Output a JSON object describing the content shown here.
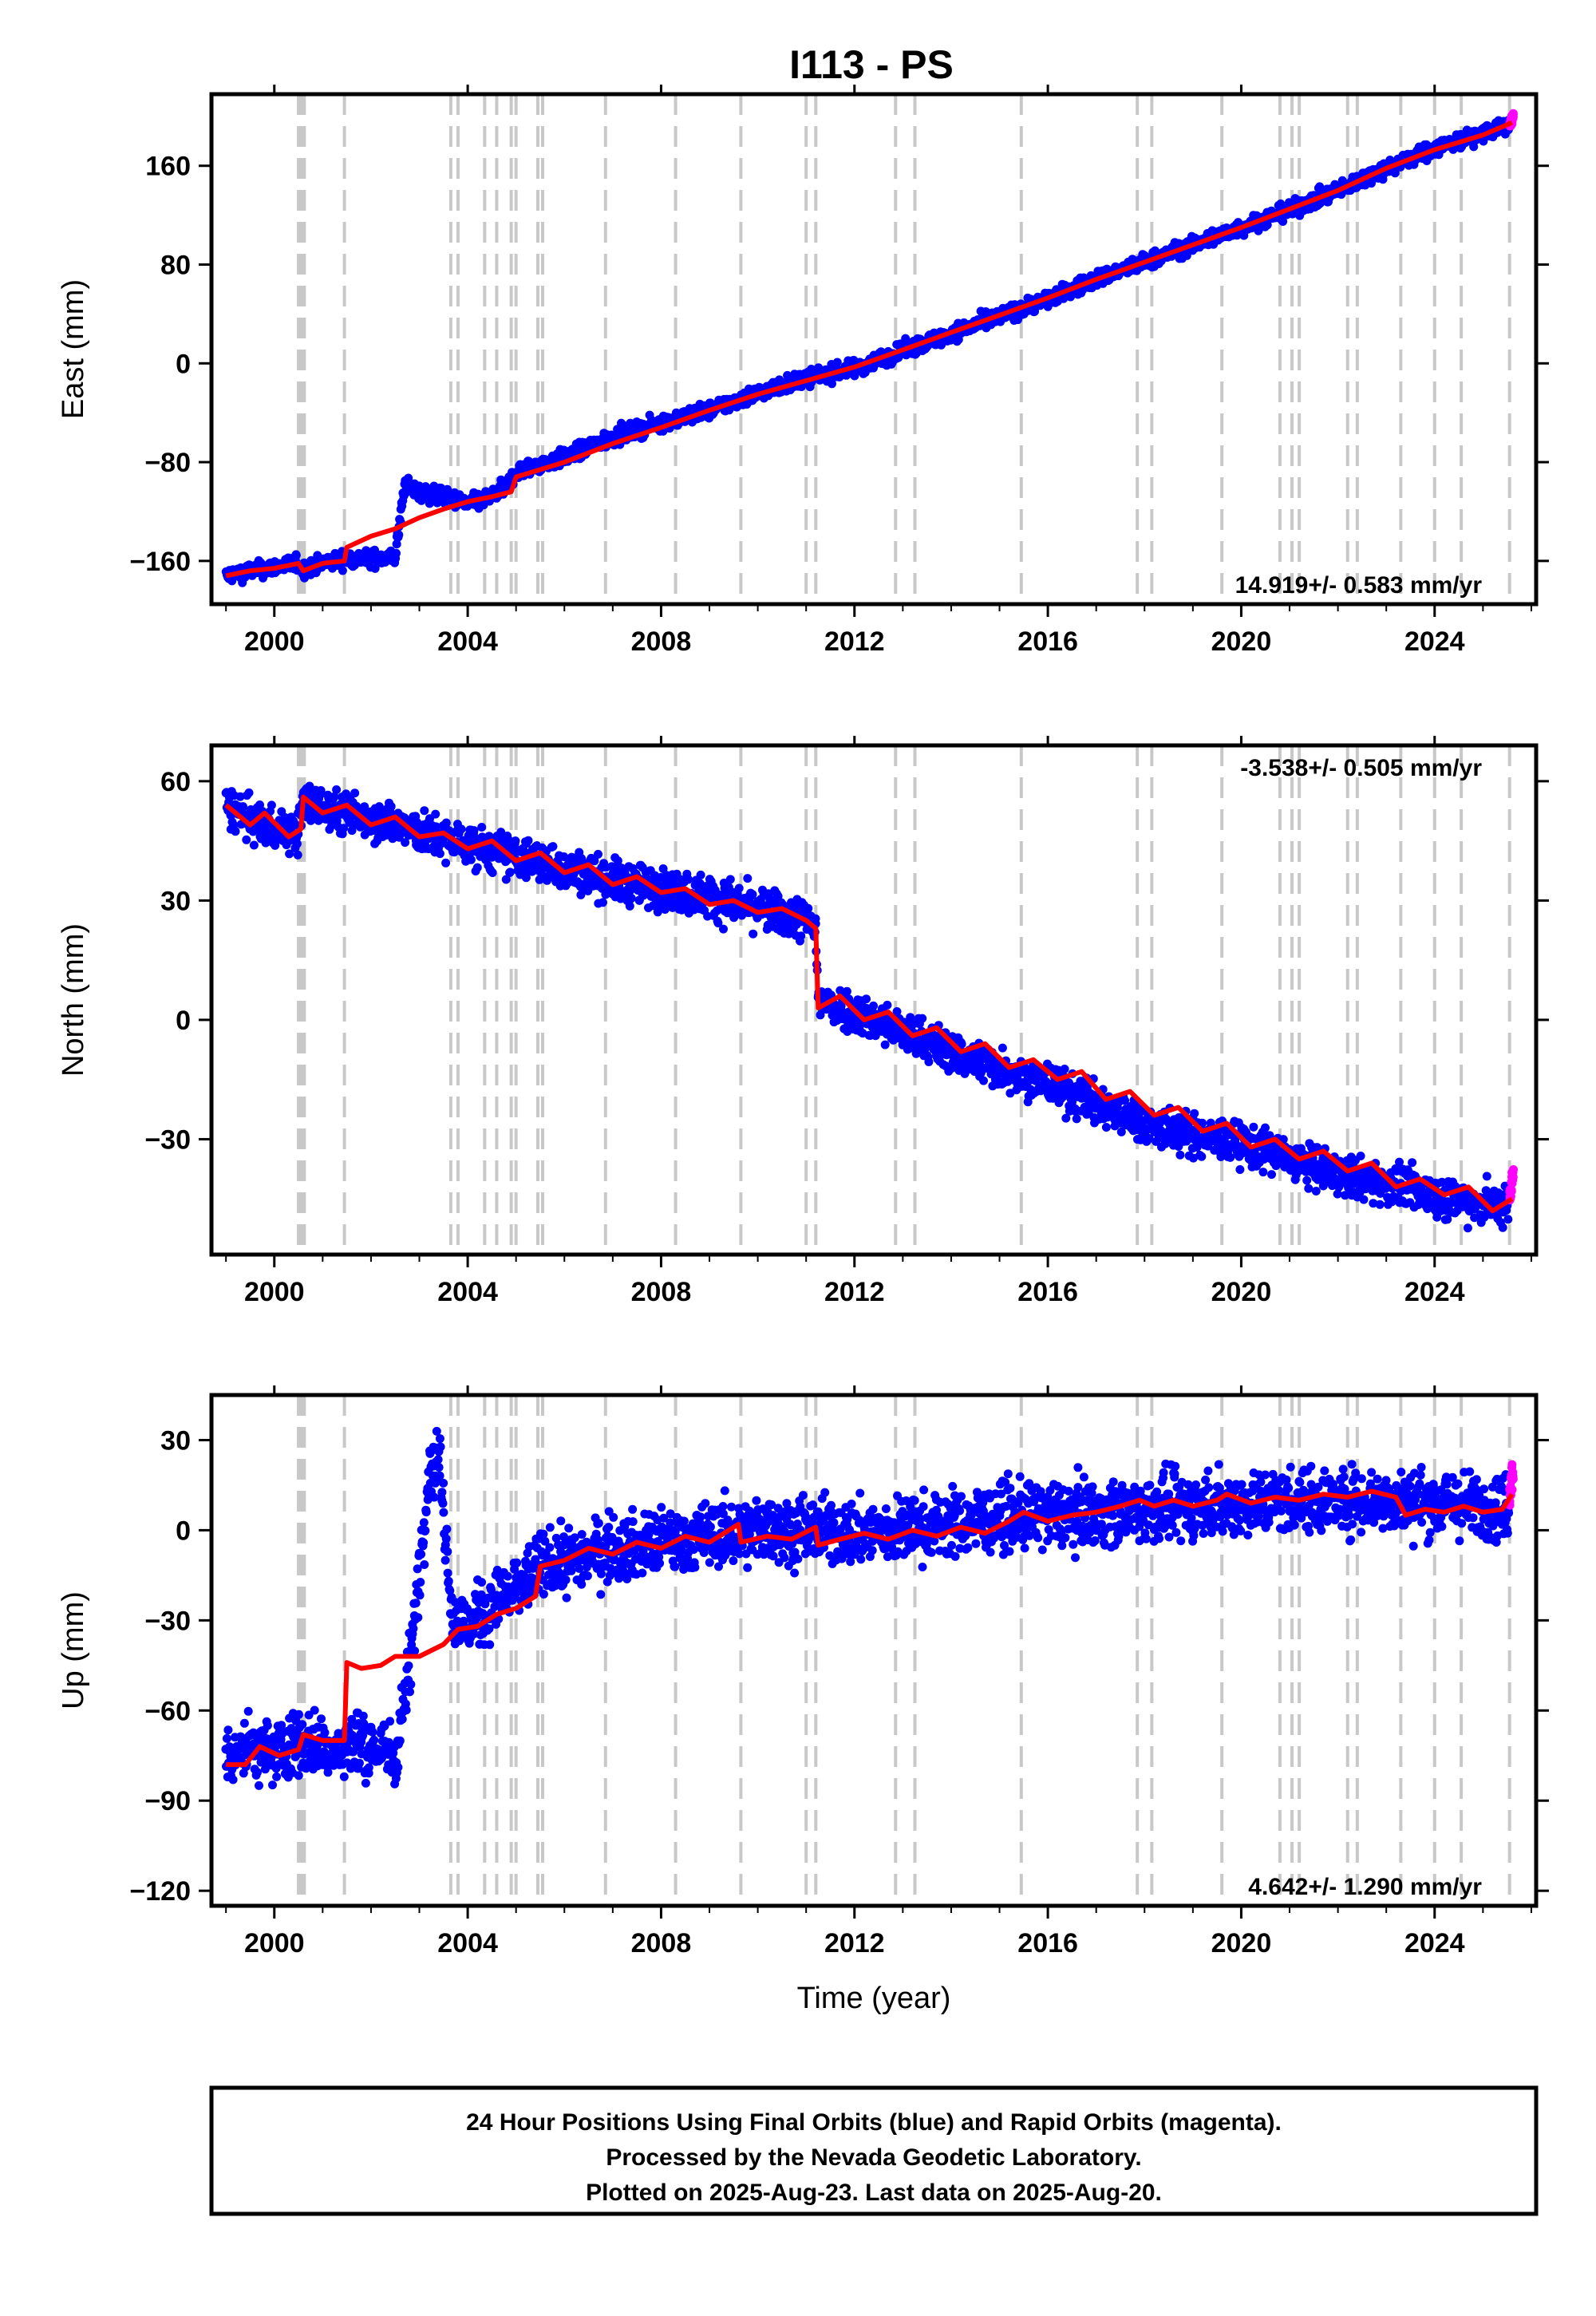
{
  "title": "I113 - PS",
  "footer": {
    "lines": [
      "24 Hour Positions Using Final Orbits (blue) and Rapid Orbits (magenta).",
      "Processed by the Nevada Geodetic Laboratory.",
      "Plotted on 2025-Aug-23. Last data on 2025-Aug-20."
    ]
  },
  "colors": {
    "final": "#0000ff",
    "rapid": "#ff00ff",
    "model": "#ff0000",
    "event": "#c8c8c8",
    "frame": "#000000"
  },
  "event_lines": [
    2000.5,
    2000.56,
    2000.62,
    2001.45,
    2003.65,
    2003.8,
    2004.35,
    2004.6,
    2004.9,
    2005.0,
    2005.45,
    2005.55,
    2006.85,
    2008.3,
    2009.65,
    2011.0,
    2011.2,
    2012.85,
    2013.25,
    2015.45,
    2017.85,
    2018.15,
    2019.6,
    2020.8,
    2021.05,
    2021.2,
    2022.2,
    2022.4,
    2023.3,
    2024.0,
    2024.55,
    2025.55
  ],
  "chart_data": [
    {
      "type": "scatter",
      "title": "I113 - PS",
      "xlabel": "",
      "ylabel": "East (mm)",
      "xlim": [
        1998.7,
        2026.1
      ],
      "ylim": [
        -195,
        218
      ],
      "xticks": [
        2000,
        2004,
        2008,
        2012,
        2016,
        2020,
        2024
      ],
      "xtick_labels": [
        "2000",
        "2004",
        "2008",
        "2012",
        "2016",
        "2020",
        "2024"
      ],
      "yticks": [
        -160,
        -80,
        0,
        80,
        160
      ],
      "ytick_labels": [
        "−160",
        "−80",
        "0",
        "80",
        "160"
      ],
      "rate_text": "14.919+/- 0.583 mm/yr",
      "rate_pos": "bottom-right",
      "final_orbits": {
        "name": "Final Orbits",
        "x": [
          1999.0,
          1999.5,
          2000.0,
          2000.5,
          2000.6,
          2001.0,
          2001.5,
          2002.0,
          2002.5,
          2002.7,
          2003.0,
          2003.5,
          2004.0,
          2004.5,
          2004.8,
          2005.0,
          2006.0,
          2007.0,
          2008.0,
          2009.0,
          2010.0,
          2011.0,
          2012.0,
          2013.0,
          2014.0,
          2015.0,
          2016.0,
          2017.0,
          2018.0,
          2019.0,
          2020.0,
          2021.0,
          2022.0,
          2023.0,
          2024.0,
          2025.0,
          2025.55
        ],
        "y": [
          -172,
          -168,
          -165,
          -162,
          -167,
          -162,
          -158,
          -158,
          -157,
          -98,
          -105,
          -108,
          -114,
          -108,
          -100,
          -88,
          -76,
          -60,
          -48,
          -38,
          -24,
          -12,
          -4,
          10,
          24,
          38,
          52,
          68,
          82,
          96,
          110,
          124,
          140,
          158,
          174,
          186,
          193
        ]
      },
      "rapid_orbits": {
        "name": "Rapid Orbits",
        "x": [
          2025.55,
          2025.6,
          2025.63
        ],
        "y": [
          192,
          197,
          202
        ]
      },
      "model": {
        "x": [
          1999.0,
          1999.5,
          2000.0,
          2000.5,
          2000.6,
          2001.0,
          2001.45,
          2001.5,
          2002.0,
          2002.5,
          2003.0,
          2003.5,
          2004.0,
          2004.5,
          2004.9,
          2005.0,
          2005.5,
          2006.0,
          2007.0,
          2008.0,
          2009.0,
          2010.0,
          2011.0,
          2012.0,
          2013.0,
          2014.0,
          2015.0,
          2016.0,
          2017.0,
          2018.0,
          2019.0,
          2020.0,
          2021.0,
          2022.0,
          2023.0,
          2024.0,
          2025.0,
          2025.6
        ],
        "y": [
          -172,
          -168,
          -166,
          -162,
          -168,
          -162,
          -160,
          -149,
          -140,
          -134,
          -125,
          -118,
          -112,
          -108,
          -104,
          -92,
          -86,
          -80,
          -65,
          -52,
          -38,
          -25,
          -14,
          -3,
          11,
          25,
          39,
          53,
          68,
          82,
          96,
          110,
          125,
          140,
          158,
          173,
          185,
          195
        ]
      }
    },
    {
      "type": "scatter",
      "title": "",
      "xlabel": "",
      "ylabel": "North (mm)",
      "xlim": [
        1998.7,
        2026.1
      ],
      "ylim": [
        -59,
        69
      ],
      "xticks": [
        2000,
        2004,
        2008,
        2012,
        2016,
        2020,
        2024
      ],
      "xtick_labels": [
        "2000",
        "2004",
        "2008",
        "2012",
        "2016",
        "2020",
        "2024"
      ],
      "yticks": [
        -30,
        0,
        30,
        60
      ],
      "ytick_labels": [
        "−30",
        "0",
        "30",
        "60"
      ],
      "rate_text": "-3.538+/- 0.505 mm/yr",
      "rate_pos": "top-right",
      "final_orbits": {
        "name": "Final Orbits",
        "x": [
          1999.0,
          1999.5,
          2000.0,
          2000.5,
          2000.6,
          2001.0,
          2002.0,
          2003.0,
          2004.0,
          2005.0,
          2006.0,
          2007.0,
          2008.0,
          2009.0,
          2010.0,
          2011.0,
          2011.2,
          2011.25,
          2012.0,
          2013.0,
          2014.0,
          2015.0,
          2016.0,
          2017.0,
          2018.0,
          2019.0,
          2020.0,
          2021.0,
          2022.0,
          2023.0,
          2024.0,
          2025.0,
          2025.55
        ],
        "y": [
          54,
          50,
          48,
          47,
          55,
          53,
          51,
          47,
          44,
          41,
          38,
          35,
          33,
          31,
          28,
          25,
          23,
          5,
          2,
          -3,
          -8,
          -12,
          -16,
          -21,
          -26,
          -29,
          -31,
          -35,
          -39,
          -41,
          -44,
          -46,
          -47
        ]
      },
      "rapid_orbits": {
        "name": "Rapid Orbits",
        "x": [
          2025.55,
          2025.6,
          2025.63
        ],
        "y": [
          -45,
          -41,
          -38
        ]
      },
      "model": {
        "x": [
          1999.0,
          1999.5,
          1999.8,
          2000.3,
          2000.55,
          2000.6,
          2001.0,
          2001.5,
          2002.0,
          2002.5,
          2003.0,
          2003.5,
          2004.0,
          2004.5,
          2005.0,
          2005.5,
          2006.0,
          2006.5,
          2007.0,
          2007.5,
          2008.0,
          2008.5,
          2009.0,
          2009.5,
          2010.0,
          2010.5,
          2011.0,
          2011.2,
          2011.25,
          2011.7,
          2012.2,
          2012.7,
          2013.2,
          2013.7,
          2014.2,
          2014.7,
          2015.2,
          2015.7,
          2016.2,
          2016.7,
          2017.2,
          2017.7,
          2018.2,
          2018.7,
          2019.2,
          2019.7,
          2020.2,
          2020.7,
          2021.2,
          2021.7,
          2022.2,
          2022.7,
          2023.2,
          2023.7,
          2024.2,
          2024.7,
          2025.2,
          2025.6
        ],
        "y": [
          54,
          49,
          52,
          46,
          48,
          56,
          52,
          54,
          49,
          51,
          46,
          47,
          43,
          45,
          40,
          42,
          37,
          39,
          34,
          36,
          32,
          33,
          29,
          30,
          27,
          28,
          25,
          23,
          3,
          6,
          0,
          2,
          -4,
          -2,
          -8,
          -6,
          -12,
          -10,
          -15,
          -13,
          -20,
          -18,
          -24,
          -22,
          -28,
          -26,
          -32,
          -30,
          -35,
          -33,
          -38,
          -36,
          -42,
          -40,
          -44,
          -42,
          -48,
          -45
        ]
      }
    },
    {
      "type": "scatter",
      "title": "",
      "xlabel": "Time (year)",
      "ylabel": "Up (mm)",
      "xlim": [
        1998.7,
        2026.1
      ],
      "ylim": [
        -125,
        45
      ],
      "xticks": [
        2000,
        2004,
        2008,
        2012,
        2016,
        2020,
        2024
      ],
      "xtick_labels": [
        "2000",
        "2004",
        "2008",
        "2012",
        "2016",
        "2020",
        "2024"
      ],
      "yticks": [
        -120,
        -90,
        -60,
        -30,
        0,
        30
      ],
      "ytick_labels": [
        "−120",
        "−90",
        "−60",
        "−30",
        "0",
        "30"
      ],
      "rate_text": "4.642+/- 1.290 mm/yr",
      "rate_pos": "bottom-right",
      "final_orbits": {
        "name": "Final Orbits",
        "x": [
          1999.0,
          1999.5,
          2000.0,
          2000.5,
          2001.0,
          2001.45,
          2001.5,
          2002.0,
          2002.5,
          2002.8,
          2003.2,
          2003.4,
          2003.7,
          2004.0,
          2004.5,
          2005.0,
          2005.5,
          2006.0,
          2007.0,
          2008.0,
          2009.0,
          2010.0,
          2011.0,
          2012.0,
          2013.0,
          2014.0,
          2015.0,
          2016.0,
          2017.0,
          2018.0,
          2019.0,
          2020.0,
          2021.0,
          2022.0,
          2023.0,
          2024.0,
          2025.0,
          2025.55
        ],
        "y": [
          -75,
          -72,
          -74,
          -70,
          -72,
          -75,
          -70,
          -72,
          -75,
          -45,
          20,
          25,
          -30,
          -32,
          -25,
          -20,
          -12,
          -10,
          -6,
          -4,
          -2,
          0,
          0,
          -1,
          0,
          2,
          4,
          5,
          6,
          7,
          8,
          9,
          10,
          10,
          10,
          9,
          8,
          8
        ]
      },
      "rapid_orbits": {
        "name": "Rapid Orbits",
        "x": [
          2025.55,
          2025.6,
          2025.63
        ],
        "y": [
          12,
          18,
          22
        ]
      },
      "model": {
        "x": [
          1999.0,
          1999.4,
          1999.7,
          2000.1,
          2000.5,
          2000.6,
          2001.0,
          2001.45,
          2001.5,
          2001.8,
          2002.2,
          2002.5,
          2003.0,
          2003.5,
          2003.8,
          2004.2,
          2004.6,
          2005.0,
          2005.4,
          2005.5,
          2006.0,
          2006.5,
          2007.0,
          2007.5,
          2008.0,
          2008.5,
          2009.0,
          2009.6,
          2009.65,
          2010.2,
          2010.7,
          2011.2,
          2011.25,
          2011.7,
          2012.2,
          2012.7,
          2013.2,
          2013.7,
          2014.2,
          2014.7,
          2015.2,
          2015.5,
          2016.0,
          2016.5,
          2017.0,
          2017.5,
          2017.9,
          2018.2,
          2018.6,
          2019.0,
          2019.5,
          2019.7,
          2020.2,
          2020.7,
          2021.2,
          2021.7,
          2022.2,
          2022.7,
          2023.2,
          2023.4,
          2023.8,
          2024.2,
          2024.6,
          2025.0,
          2025.4,
          2025.6
        ],
        "y": [
          -78,
          -78,
          -72,
          -75,
          -73,
          -68,
          -70,
          -70,
          -44,
          -46,
          -45,
          -42,
          -42,
          -38,
          -33,
          -32,
          -28,
          -26,
          -22,
          -12,
          -10,
          -6,
          -8,
          -4,
          -6,
          -2,
          -4,
          2,
          -4,
          -2,
          -3,
          1,
          -5,
          -3,
          -1,
          -3,
          0,
          -2,
          1,
          -1,
          3,
          6,
          3,
          5,
          6,
          8,
          10,
          8,
          10,
          8,
          10,
          12,
          9,
          11,
          10,
          12,
          11,
          13,
          11,
          5,
          7,
          6,
          8,
          6,
          7,
          12
        ]
      }
    }
  ]
}
